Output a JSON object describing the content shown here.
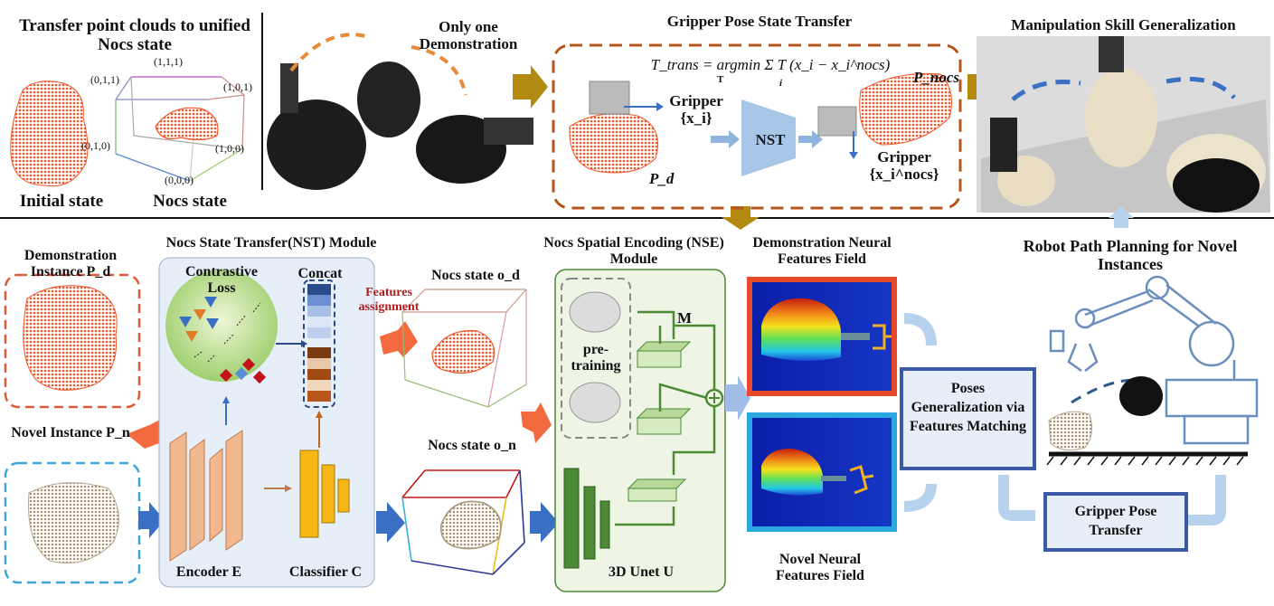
{
  "top": {
    "transfer_title": "Transfer point clouds to unified Nocs state",
    "initial_state": "Initial state",
    "nocs_state": "Nocs state",
    "cube_labels": [
      "(0,1,1)",
      "(1,1,1)",
      "(1,0,1)",
      "(0,1,0)",
      "(1,0,0)",
      "(0,0,0)"
    ],
    "demo_title": "Only one Demonstration",
    "gpst_title": "Gripper Pose State Transfer",
    "equation": "T_trans = argmin Σ T (x_i − x_i^nocs)",
    "equation_argmin_sub": "T",
    "equation_sum_sub": "i",
    "p_nocs": "P_nocs",
    "gripper_xi": "Gripper {x_i}",
    "nst": "NST",
    "gripper_xnocs": "Gripper {x_i^nocs}",
    "p_d": "P_d",
    "msg_title": "Manipulation Skill Generalization"
  },
  "bottom": {
    "demo_instance": "Demonstration Instance P_d",
    "novel_instance": "Novel Instance P_n",
    "nst_module_title": "Nocs State Transfer(NST) Module",
    "contrastive_loss": "Contrastive Loss",
    "concat": "Concat",
    "features_assignment": "Features assignment",
    "encoder": "Encoder E",
    "classifier": "Classifier C",
    "nocs_state_od": "Nocs state o_d",
    "nocs_state_on": "Nocs state o_n",
    "nse_title": "Nocs Spatial Encoding (NSE) Module",
    "pretraining": "pre-training",
    "m_label": "M",
    "unet": "3D Unet U",
    "demo_field": "Demonstration Neural Features Field",
    "novel_field": "Novel Neural Features Field",
    "poses_gen": "Poses Generalization via Features Matching",
    "gripper_transfer": "Gripper Pose Transfer",
    "robot_path": "Robot Path Planning for Novel Instances"
  },
  "colors": {
    "orange_cloud": "#f0562a",
    "tan_cloud": "#b7a58a",
    "nst_fill": "#e6eef8",
    "green": "#4c8a35",
    "arrow_blue": "#3a6fc4",
    "arrow_orange": "#f26a3d",
    "dark_gold": "#b38a12",
    "box_blue": "#3a5aa8"
  }
}
